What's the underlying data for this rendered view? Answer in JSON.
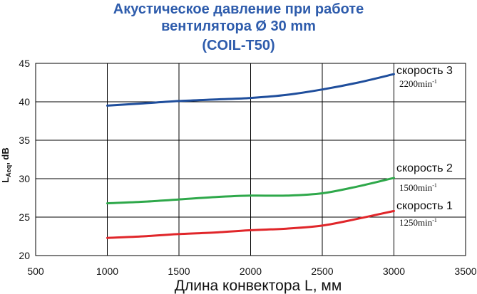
{
  "chart_data": {
    "type": "line",
    "title_lines": [
      "Акустическое давление при работе",
      "вентилятора Ø 30 mm",
      "(COIL-T50)"
    ],
    "xlabel": "Длина конвектора L, мм",
    "ylabel_main": "L",
    "ylabel_sub": "Aeq",
    "ylabel_unit": ", dB",
    "xlim": [
      500,
      3500
    ],
    "ylim": [
      20,
      45
    ],
    "xticks": [
      "500",
      "1000",
      "1500",
      "2000",
      "2500",
      "3000",
      "3500"
    ],
    "yticks": [
      "20",
      "25",
      "30",
      "35",
      "40",
      "45"
    ],
    "grid": true,
    "series": [
      {
        "name": "скорость 3",
        "rpm": "2200min",
        "rpm_sup": "-1",
        "color": "#1f4e9c",
        "x": [
          1000,
          1250,
          1500,
          1750,
          2000,
          2250,
          2500,
          2750,
          3000
        ],
        "y": [
          39.5,
          39.8,
          40.1,
          40.3,
          40.5,
          40.9,
          41.6,
          42.5,
          43.6
        ]
      },
      {
        "name": "скорость 2",
        "rpm": "1500min",
        "rpm_sup": "-1",
        "color": "#2ea84a",
        "x": [
          1000,
          1250,
          1500,
          1750,
          2000,
          2250,
          2500,
          2750,
          3000
        ],
        "y": [
          26.8,
          27.0,
          27.3,
          27.6,
          27.8,
          27.8,
          28.1,
          29.0,
          30.1
        ]
      },
      {
        "name": "скорость 1",
        "rpm": "1250min",
        "rpm_sup": "-1",
        "color": "#e0262a",
        "x": [
          1000,
          1250,
          1500,
          1750,
          2000,
          2250,
          2500,
          2750,
          3000
        ],
        "y": [
          22.3,
          22.5,
          22.8,
          23.0,
          23.3,
          23.5,
          23.9,
          24.8,
          25.8
        ]
      }
    ]
  }
}
